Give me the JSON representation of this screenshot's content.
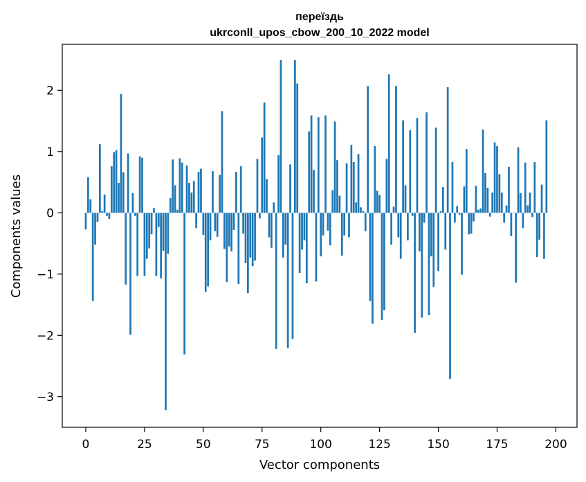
{
  "chart_data": {
    "type": "bar",
    "title": "переїздь",
    "subtitle": "ukrconll_upos_cbow_200_10_2022 model",
    "xlabel": "Vector components",
    "ylabel": "Components values",
    "xlim": [
      -10,
      209
    ],
    "ylim": [
      -3.5,
      2.75
    ],
    "xticks": [
      0,
      25,
      50,
      75,
      100,
      125,
      150,
      175,
      200
    ],
    "xtick_labels": [
      "0",
      "25",
      "50",
      "75",
      "100",
      "125",
      "150",
      "175",
      "200"
    ],
    "yticks": [
      -3,
      -2,
      -1,
      0,
      1,
      2
    ],
    "ytick_labels": [
      "−3",
      "−2",
      "−1",
      "0",
      "1",
      "2"
    ],
    "bar_color": "#1f77b4",
    "grid": false,
    "legend": "none",
    "values": [
      -0.27,
      0.58,
      0.22,
      -1.44,
      -0.52,
      -0.15,
      1.12,
      0.03,
      0.3,
      -0.05,
      -0.1,
      0.76,
      0.99,
      1.02,
      0.49,
      1.94,
      0.66,
      -1.17,
      0.97,
      -1.99,
      0.32,
      -0.05,
      -1.03,
      0.92,
      0.9,
      -1.03,
      -0.75,
      -0.58,
      -0.35,
      0.08,
      -1.03,
      -0.23,
      -1.07,
      -0.62,
      -3.22,
      -0.67,
      0.24,
      0.87,
      0.45,
      0.05,
      0.89,
      0.82,
      -2.31,
      0.77,
      0.49,
      0.33,
      0.52,
      -0.25,
      0.67,
      0.72,
      -0.36,
      -1.29,
      -1.2,
      -0.45,
      0.68,
      -0.3,
      -0.39,
      0.62,
      1.66,
      -0.59,
      -1.13,
      -0.55,
      -0.63,
      -0.28,
      0.67,
      -1.16,
      0.76,
      -0.34,
      -0.82,
      -1.31,
      -0.73,
      -0.87,
      -0.78,
      0.88,
      -0.09,
      1.23,
      1.8,
      0.55,
      -0.4,
      -0.57,
      0.17,
      -2.22,
      0.94,
      2.49,
      -0.73,
      -0.52,
      -2.21,
      0.79,
      -2.06,
      2.49,
      2.11,
      -0.98,
      -0.6,
      -0.45,
      -1.15,
      1.33,
      1.59,
      0.7,
      -1.12,
      1.56,
      -0.71,
      -0.37,
      1.59,
      -0.29,
      -0.53,
      0.37,
      1.49,
      0.86,
      0.28,
      -0.7,
      -0.37,
      0.81,
      -0.4,
      1.11,
      0.83,
      0.17,
      0.96,
      0.09,
      0.03,
      -0.3,
      2.07,
      -1.44,
      -1.81,
      1.09,
      0.36,
      0.29,
      -1.75,
      -1.59,
      0.88,
      2.26,
      -0.52,
      0.1,
      2.07,
      -0.4,
      -0.75,
      1.51,
      0.45,
      -0.45,
      1.35,
      -0.05,
      -1.96,
      1.55,
      -0.63,
      -1.71,
      -0.16,
      1.64,
      -1.67,
      -0.71,
      -1.21,
      1.39,
      -0.95,
      0.03,
      0.42,
      -0.6,
      2.05,
      -2.71,
      0.83,
      -0.16,
      0.11,
      -0.03,
      -1.01,
      0.43,
      1.04,
      -0.35,
      -0.34,
      -0.14,
      0.44,
      0.05,
      0.07,
      1.36,
      0.65,
      0.41,
      -0.06,
      0.33,
      1.15,
      1.09,
      0.63,
      0.33,
      -0.16,
      0.12,
      0.75,
      -0.38,
      0.0,
      -1.14,
      1.07,
      0.32,
      -0.25,
      0.82,
      0.12,
      0.33,
      -0.07,
      0.83,
      -0.72,
      -0.44,
      0.46,
      -0.75,
      1.51
    ]
  }
}
